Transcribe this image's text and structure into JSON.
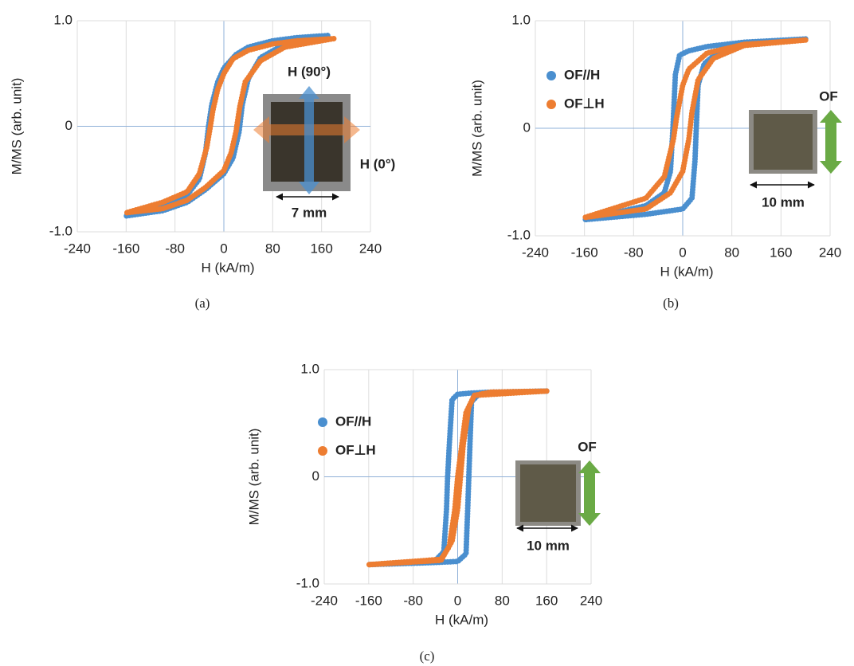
{
  "chart_data": {
    "charts": [
      {
        "type": "line",
        "caption": "(a)",
        "xlabel": "H (kA/m)",
        "ylabel": "M/MS (arb. unit)",
        "xlim": [
          -240,
          240
        ],
        "ylim": [
          -1,
          1
        ],
        "xticks": [
          -240,
          -160,
          -80,
          0,
          80,
          160,
          240
        ],
        "yticks": [
          {
            "value": -1,
            "label": "-1.0"
          },
          0,
          {
            "value": 1,
            "label": "1.0"
          }
        ],
        "grid": true,
        "series": [
          {
            "color": "#4a8fcf",
            "x": [
              170,
              120,
              80,
              40,
              20,
              0,
              -10,
              -20,
              -25,
              -30,
              -40,
              -60,
              -100,
              -160,
              -100,
              -60,
              -30,
              0,
              15,
              25,
              30,
              40,
              60,
              100,
              170
            ],
            "values": [
              0.86,
              0.84,
              0.81,
              0.75,
              0.68,
              0.55,
              0.42,
              0.2,
              0,
              -0.25,
              -0.5,
              -0.65,
              -0.75,
              -0.85,
              -0.8,
              -0.72,
              -0.6,
              -0.45,
              -0.3,
              -0.05,
              0.2,
              0.45,
              0.65,
              0.78,
              0.86
            ]
          },
          {
            "color": "#ed7d31",
            "x": [
              180,
              120,
              80,
              40,
              15,
              0,
              -10,
              -18,
              -22,
              -28,
              -40,
              -60,
              -100,
              -160,
              -100,
              -60,
              -30,
              0,
              12,
              20,
              26,
              35,
              60,
              100,
              180
            ],
            "values": [
              0.83,
              0.81,
              0.78,
              0.72,
              0.64,
              0.5,
              0.35,
              0.15,
              0,
              -0.2,
              -0.45,
              -0.62,
              -0.72,
              -0.82,
              -0.78,
              -0.7,
              -0.58,
              -0.42,
              -0.25,
              -0.05,
              0.18,
              0.42,
              0.62,
              0.75,
              0.83
            ]
          }
        ],
        "annotations": [
          {
            "text": "H (90°)",
            "color": "#3a7dbf"
          },
          {
            "text": "H (0°)",
            "color": "#ed7d31"
          },
          {
            "text": "7 mm",
            "color": "#111"
          }
        ]
      },
      {
        "type": "line",
        "caption": "(b)",
        "xlabel": "H (kA/m)",
        "ylabel": "M/MS (arb. unit)",
        "xlim": [
          -240,
          240
        ],
        "ylim": [
          -1,
          1
        ],
        "xticks": [
          -240,
          -160,
          -80,
          0,
          80,
          160,
          240
        ],
        "yticks": [
          {
            "value": -1,
            "label": "-1.0"
          },
          0,
          {
            "value": 1,
            "label": "1.0"
          }
        ],
        "grid": true,
        "series": [
          {
            "name": "OF//H",
            "color": "#4a8fcf",
            "x": [
              200,
              100,
              40,
              10,
              -5,
              -12,
              -16,
              -20,
              -30,
              -60,
              -160,
              -60,
              0,
              15,
              20,
              22,
              25,
              35,
              60,
              100,
              200
            ],
            "values": [
              0.83,
              0.8,
              0.76,
              0.72,
              0.68,
              0.5,
              0,
              -0.4,
              -0.6,
              -0.72,
              -0.85,
              -0.8,
              -0.75,
              -0.65,
              -0.3,
              0,
              0.4,
              0.6,
              0.72,
              0.78,
              0.83
            ]
          },
          {
            "name": "OF⊥H",
            "color": "#ed7d31",
            "x": [
              200,
              100,
              40,
              10,
              0,
              -10,
              -15,
              -30,
              -60,
              -160,
              -60,
              -20,
              0,
              10,
              15,
              25,
              50,
              100,
              200
            ],
            "values": [
              0.82,
              0.78,
              0.7,
              0.55,
              0.4,
              0.1,
              -0.1,
              -0.45,
              -0.65,
              -0.83,
              -0.75,
              -0.6,
              -0.4,
              -0.1,
              0.15,
              0.45,
              0.65,
              0.77,
              0.82
            ]
          }
        ],
        "annotations": [
          {
            "text": "OF",
            "color": "#5a9e3a"
          },
          {
            "text": "10 mm",
            "color": "#111"
          }
        ]
      },
      {
        "type": "line",
        "caption": "(c)",
        "xlabel": "H (kA/m)",
        "ylabel": "M/MS (arb. unit)",
        "xlim": [
          -240,
          240
        ],
        "ylim": [
          -1,
          1
        ],
        "xticks": [
          -240,
          -160,
          -80,
          0,
          80,
          160,
          240
        ],
        "yticks": [
          {
            "value": -1,
            "label": "-1.0"
          },
          0,
          {
            "value": 1,
            "label": "1.0"
          }
        ],
        "grid": true,
        "series": [
          {
            "name": "OF//H",
            "color": "#4a8fcf",
            "x": [
              160,
              60,
              20,
              0,
              -10,
              -15,
              -18,
              -20,
              -25,
              -40,
              -160,
              -40,
              0,
              15,
              18,
              20,
              22,
              25,
              40,
              160
            ],
            "values": [
              0.8,
              0.79,
              0.78,
              0.77,
              0.72,
              0.3,
              0,
              -0.3,
              -0.7,
              -0.78,
              -0.82,
              -0.8,
              -0.79,
              -0.72,
              -0.3,
              0,
              0.3,
              0.7,
              0.78,
              0.8
            ]
          },
          {
            "name": "OF⊥H",
            "color": "#ed7d31",
            "x": [
              160,
              60,
              30,
              15,
              5,
              0,
              -5,
              -15,
              -30,
              -160,
              -30,
              -10,
              0,
              5,
              10,
              20,
              30,
              160
            ],
            "values": [
              0.8,
              0.79,
              0.76,
              0.6,
              0.2,
              0,
              -0.3,
              -0.65,
              -0.77,
              -0.82,
              -0.78,
              -0.6,
              -0.3,
              0,
              0.3,
              0.65,
              0.76,
              0.8
            ]
          }
        ],
        "annotations": [
          {
            "text": "OF",
            "color": "#5a9e3a"
          },
          {
            "text": "10 mm",
            "color": "#111"
          }
        ]
      }
    ]
  }
}
